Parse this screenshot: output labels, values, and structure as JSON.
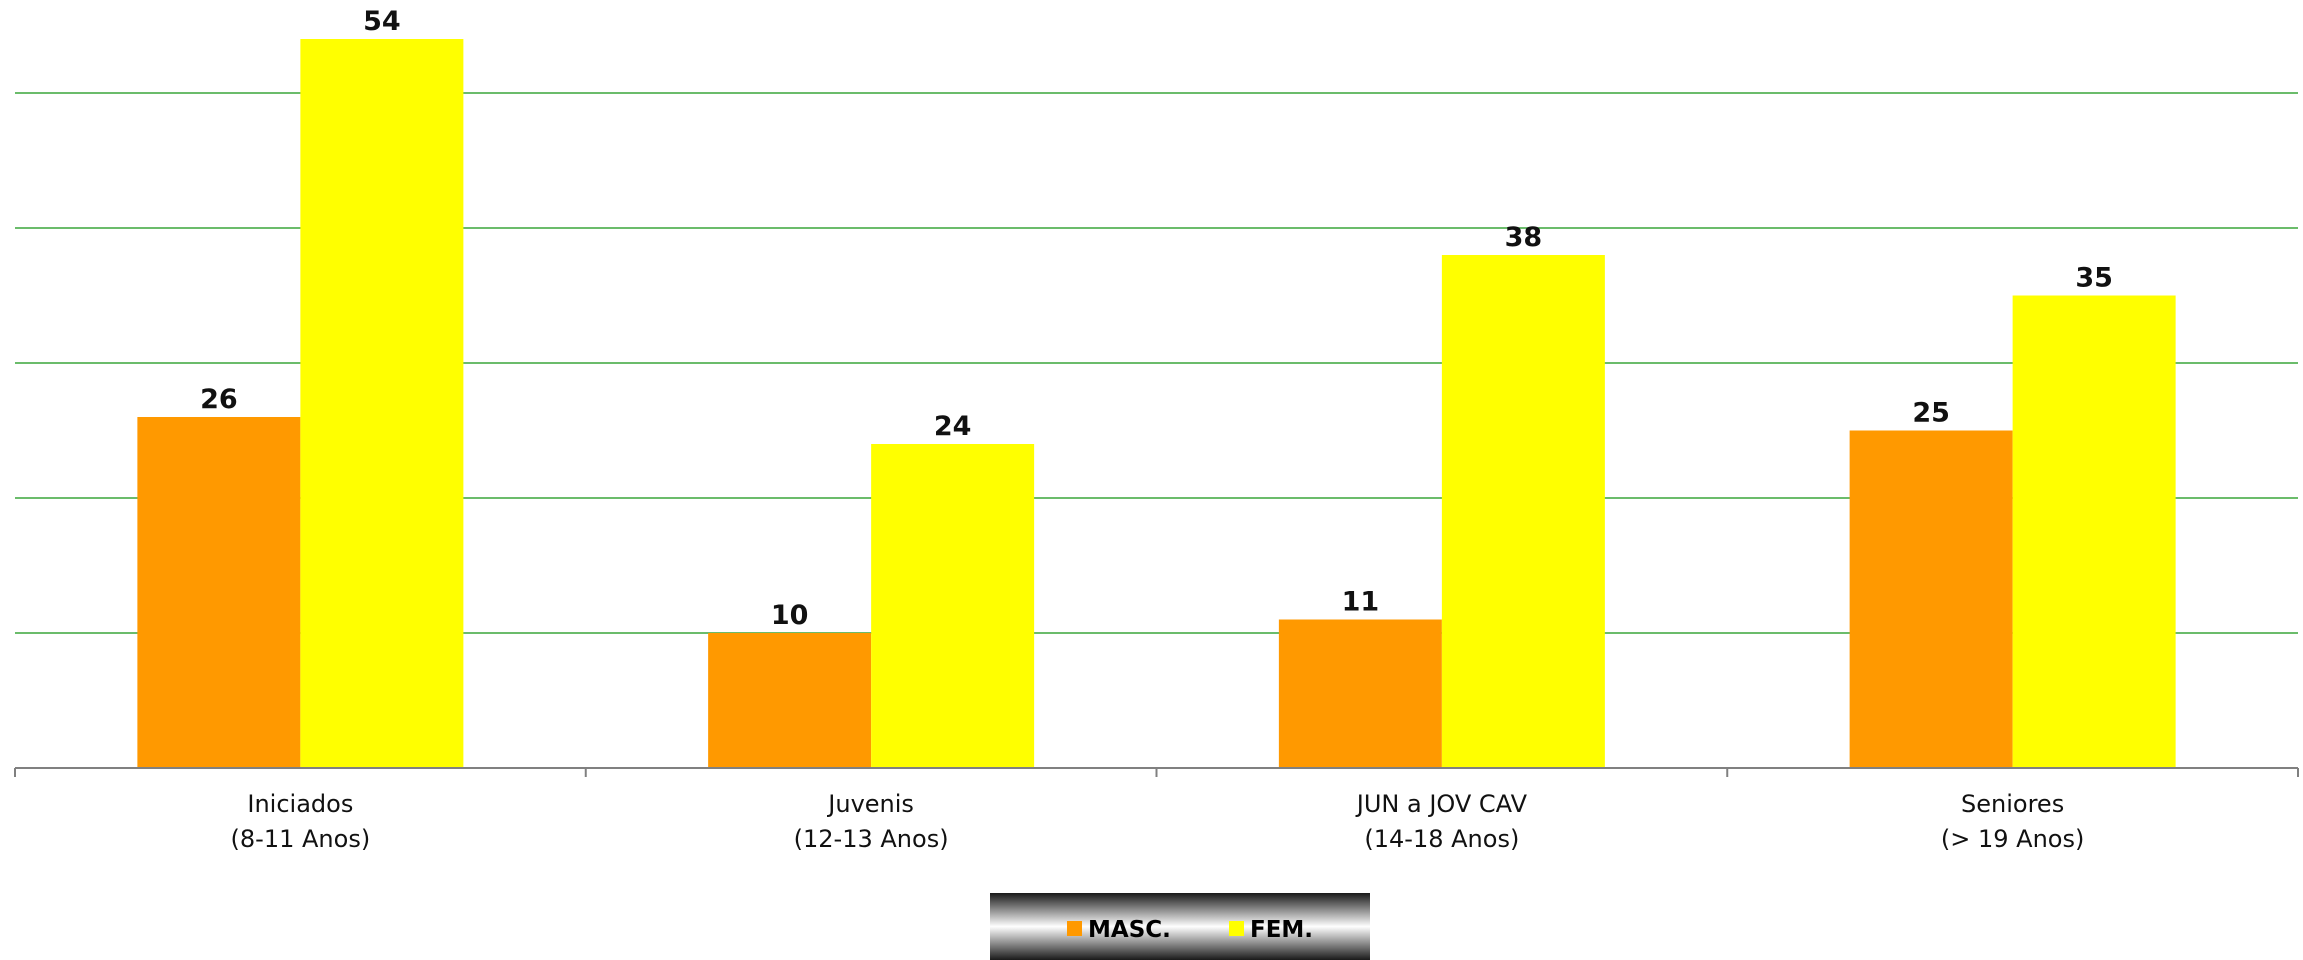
{
  "chart_data": {
    "type": "bar",
    "categories": [
      [
        "Iniciados",
        "(8-11 Anos)"
      ],
      [
        "Juvenis",
        "(12-13 Anos)"
      ],
      [
        "JUN a JOV CAV",
        "(14-18 Anos)"
      ],
      [
        "Seniores",
        "(> 19 Anos)"
      ]
    ],
    "series": [
      {
        "name": "MASC.",
        "color": "#ff9900",
        "values": [
          26,
          10,
          11,
          25
        ]
      },
      {
        "name": "FEM.",
        "color": "#ffff00",
        "values": [
          54,
          24,
          38,
          35
        ]
      }
    ],
    "ylim": [
      0,
      60
    ],
    "gridlines": [
      10,
      20,
      30,
      40,
      50
    ],
    "grid": true,
    "legend": "bottom-center",
    "data_labels": true
  }
}
